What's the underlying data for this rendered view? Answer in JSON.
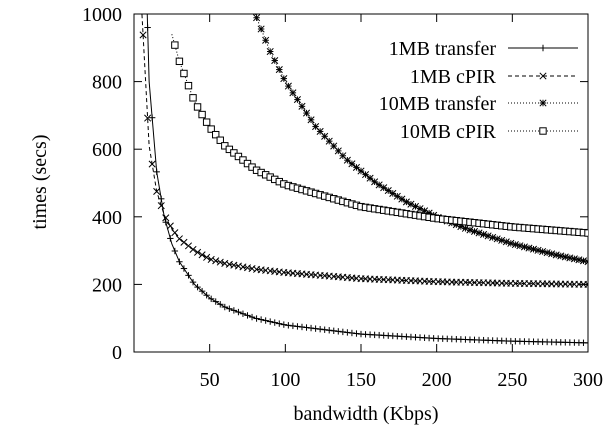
{
  "chart_data": {
    "type": "line",
    "xlabel": "bandwidth (Kbps)",
    "ylabel": "times (secs)",
    "xlim": [
      0,
      300
    ],
    "ylim": [
      0,
      1000
    ],
    "x_ticks": [
      50,
      100,
      150,
      200,
      250,
      300
    ],
    "y_ticks": [
      0,
      200,
      400,
      600,
      800,
      1000
    ],
    "x_tick_labels": [
      "50",
      "100",
      "150",
      "200",
      "250",
      "300"
    ],
    "y_tick_labels": [
      "0",
      "200",
      "400",
      "600",
      "800",
      "1000"
    ],
    "grid": false,
    "legend_position": "top-right",
    "series": [
      {
        "name": "1MB transfer",
        "marker": "plus",
        "line_style": "solid",
        "x": [
          5,
          10,
          15,
          20,
          25,
          30,
          40,
          50,
          60,
          80,
          100,
          150,
          200,
          250,
          300
        ],
        "y": [
          1600,
          800,
          533,
          400,
          320,
          267,
          200,
          160,
          133,
          100,
          80,
          53,
          40,
          32,
          27
        ]
      },
      {
        "name": "1MB cPIR",
        "marker": "x",
        "line_style": "dashed",
        "x": [
          5,
          10,
          15,
          20,
          25,
          30,
          40,
          50,
          60,
          80,
          100,
          150,
          200,
          250,
          300
        ],
        "y": [
          1020,
          610,
          475,
          405,
          365,
          335,
          300,
          275,
          262,
          245,
          235,
          217,
          208,
          203,
          200
        ]
      },
      {
        "name": "10MB transfer",
        "marker": "star",
        "line_style": "dotted",
        "x": [
          80,
          90,
          100,
          120,
          140,
          160,
          180,
          200,
          220,
          250,
          280,
          300
        ],
        "y": [
          1000,
          889,
          800,
          667,
          571,
          500,
          444,
          400,
          364,
          320,
          286,
          267
        ]
      },
      {
        "name": "10MB cPIR",
        "marker": "square",
        "line_style": "dotted",
        "x": [
          25,
          30,
          40,
          50,
          60,
          80,
          100,
          150,
          200,
          250,
          300
        ],
        "y": [
          940,
          860,
          740,
          665,
          610,
          540,
          495,
          430,
          395,
          370,
          352
        ]
      }
    ]
  }
}
